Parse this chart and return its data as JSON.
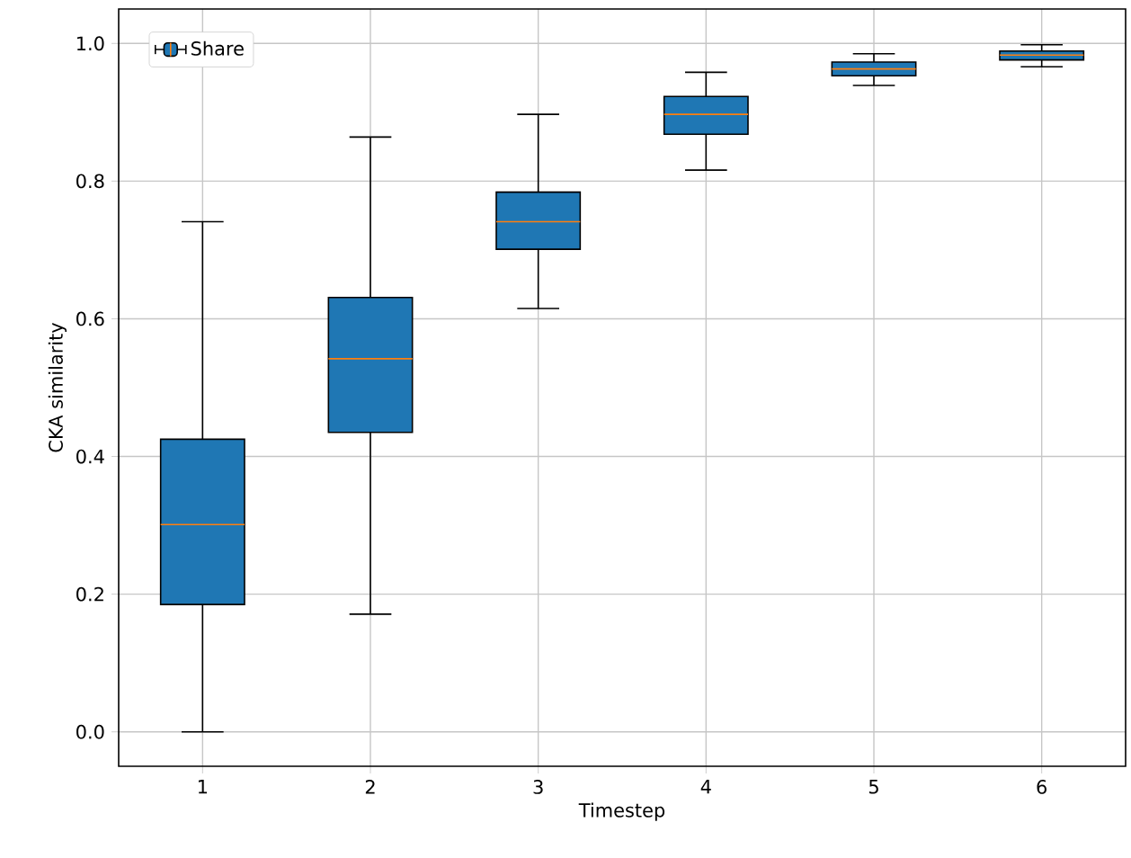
{
  "chart_data": {
    "type": "box",
    "xlabel": "Timestep",
    "ylabel": "CKA similarity",
    "categories": [
      "1",
      "2",
      "3",
      "4",
      "5",
      "6"
    ],
    "series": [
      {
        "name": "Share",
        "color": "#1f77b4",
        "boxes": [
          {
            "low": 0.0,
            "q1": 0.185,
            "median": 0.301,
            "q3": 0.425,
            "high": 0.741
          },
          {
            "low": 0.171,
            "q1": 0.435,
            "median": 0.542,
            "q3": 0.631,
            "high": 0.864
          },
          {
            "low": 0.615,
            "q1": 0.701,
            "median": 0.741,
            "q3": 0.784,
            "high": 0.897
          },
          {
            "low": 0.816,
            "q1": 0.868,
            "median": 0.897,
            "q3": 0.923,
            "high": 0.958
          },
          {
            "low": 0.939,
            "q1": 0.953,
            "median": 0.963,
            "q3": 0.973,
            "high": 0.985
          },
          {
            "low": 0.966,
            "q1": 0.976,
            "median": 0.983,
            "q3": 0.989,
            "high": 0.998
          }
        ]
      }
    ],
    "ylim": [
      -0.05,
      1.05
    ],
    "yticks": [
      {
        "value": 0,
        "label": "0.0"
      },
      {
        "value": 0.2,
        "label": "0.2"
      },
      {
        "value": 0.4,
        "label": "0.4"
      },
      {
        "value": 0.6,
        "label": "0.6"
      },
      {
        "value": 0.8,
        "label": "0.8"
      },
      {
        "value": 1.0,
        "label": "1.0"
      }
    ],
    "grid": true,
    "legend": "top left"
  }
}
